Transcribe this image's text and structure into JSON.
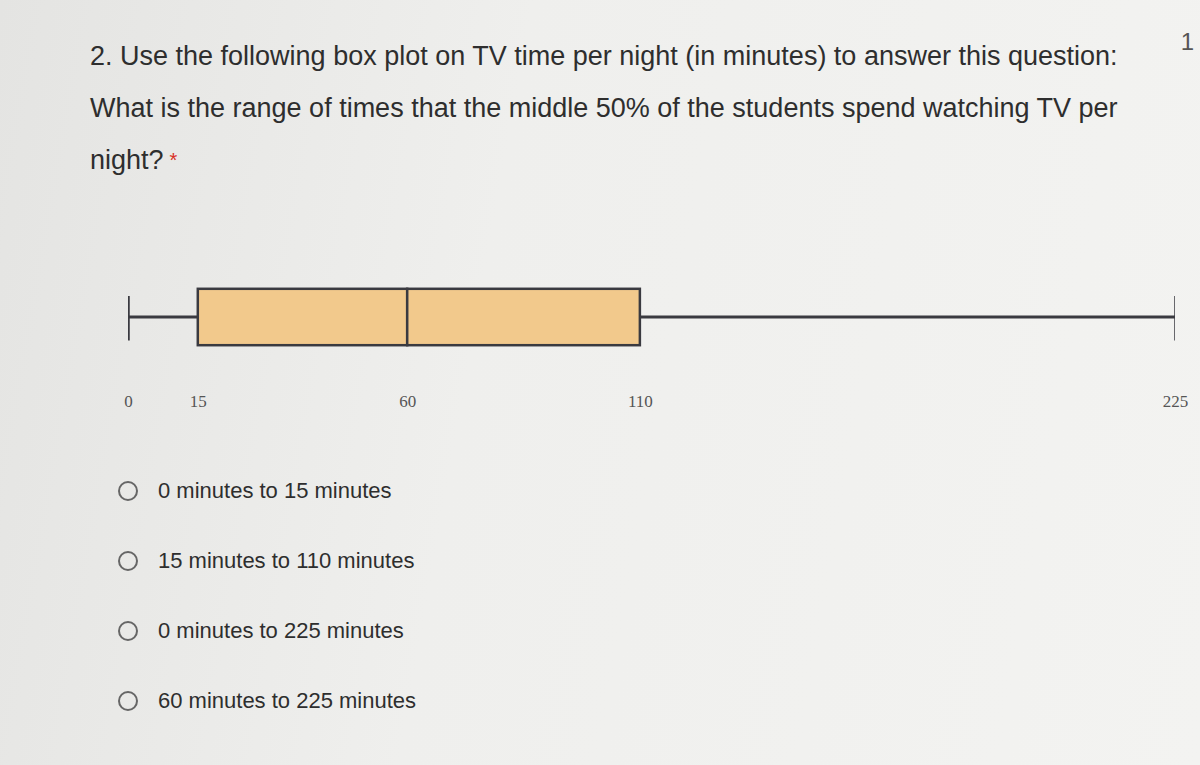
{
  "points_label": "1",
  "question": "2. Use the following box plot on TV time per night (in minutes) to answer this question: What is the range of times that the middle 50% of the students spend watching TV per night?",
  "required_mark": "*",
  "options": [
    "0 minutes to 15 minutes",
    "15 minutes to 110 minutes",
    "0 minutes to 225 minutes",
    "60 minutes to 225 minutes"
  ],
  "chart_data": {
    "type": "box",
    "min": 0,
    "q1": 15,
    "median": 60,
    "q3": 110,
    "max": 225,
    "color": "#f2c98c",
    "xlim": [
      0,
      225
    ],
    "xticks": [
      0,
      15,
      60,
      110,
      225
    ]
  }
}
